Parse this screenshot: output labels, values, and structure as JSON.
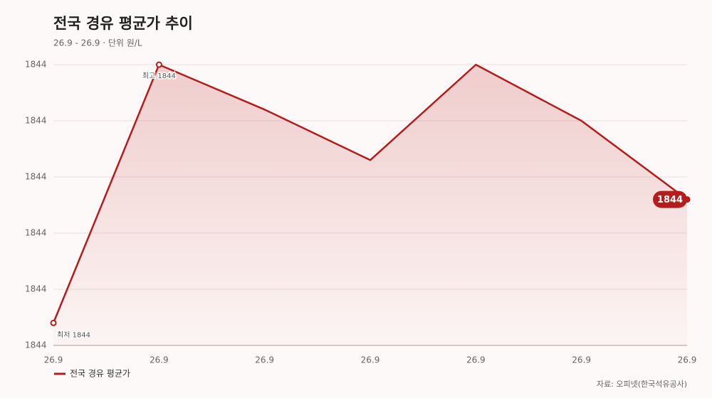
{
  "chart_data": {
    "type": "line",
    "title": "전국 경유 평균가 추이",
    "subtitle": "26.9 - 26.9 · 단위 원/L",
    "source": "자료: 오피넷(한국석유공사)",
    "categories": [
      "26.9",
      "26.9",
      "26.9",
      "26.9",
      "26.9",
      "26.9",
      "26.9"
    ],
    "series": [
      {
        "name": "전국 경유 평균가",
        "color": "#b71c1c",
        "values": [
          1843.84,
          1844.3,
          1844.22,
          1844.13,
          1844.3,
          1844.2,
          1844.06
        ],
        "value_labels": [
          "최저 1844",
          "최고 1844",
          null,
          null,
          null,
          null,
          "1844"
        ]
      }
    ],
    "ylim": [
      1843.8,
      1844.3
    ],
    "yticks": [
      {
        "value": 1843.8,
        "label": "1844"
      },
      {
        "value": 1843.9,
        "label": "1844"
      },
      {
        "value": 1844.0,
        "label": "1844"
      },
      {
        "value": 1844.1,
        "label": "1844"
      },
      {
        "value": 1844.2,
        "label": "1844"
      },
      {
        "value": 1844.3,
        "label": "1844"
      }
    ],
    "grid": true
  }
}
